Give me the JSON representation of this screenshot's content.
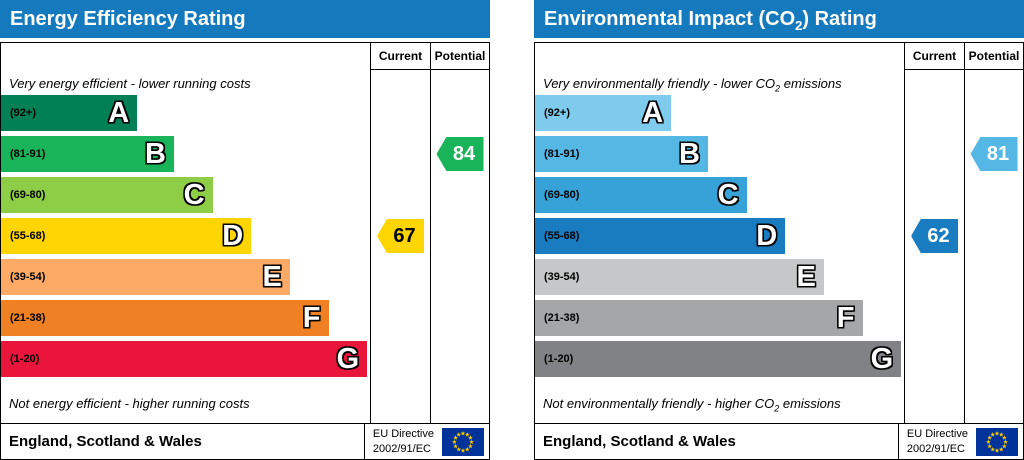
{
  "chart_data": [
    {
      "type": "bar",
      "title_pre": "Energy Efficiency Rating",
      "title_sub": "",
      "title_post": "",
      "header_bg": "#1479bd",
      "col_current": "Current",
      "col_potential": "Potential",
      "note_top_pre": "Very energy efficient - lower running costs",
      "note_top_sub": "",
      "note_top_post": "",
      "note_bottom_pre": "Not energy efficient - higher running costs",
      "note_bottom_sub": "",
      "note_bottom_post": "",
      "bands": [
        {
          "letter": "A",
          "range": "(92+)",
          "min": 92,
          "max": 100,
          "color": "#008054",
          "width_pct": 37
        },
        {
          "letter": "B",
          "range": "(81-91)",
          "min": 81,
          "max": 91,
          "color": "#19b459",
          "width_pct": 47
        },
        {
          "letter": "C",
          "range": "(69-80)",
          "min": 69,
          "max": 80,
          "color": "#8dce46",
          "width_pct": 57.5
        },
        {
          "letter": "D",
          "range": "(55-68)",
          "min": 55,
          "max": 68,
          "color": "#ffd500",
          "width_pct": 68
        },
        {
          "letter": "E",
          "range": "(39-54)",
          "min": 39,
          "max": 54,
          "color": "#fcaa65",
          "width_pct": 78.5
        },
        {
          "letter": "F",
          "range": "(21-38)",
          "min": 21,
          "max": 38,
          "color": "#ef8023",
          "width_pct": 89
        },
        {
          "letter": "G",
          "range": "(1-20)",
          "min": 1,
          "max": 20,
          "color": "#e9153b",
          "width_pct": 99.5
        }
      ],
      "current": {
        "value": 67,
        "band": "D",
        "band_index": 3,
        "bg": "#ffd500",
        "fg": "#000000"
      },
      "potential": {
        "value": 84,
        "band": "B",
        "band_index": 1,
        "bg": "#19b459",
        "fg": "#ffffff"
      },
      "footer": {
        "region": "England, Scotland & Wales",
        "directive": [
          "EU Directive",
          "2002/91/EC"
        ],
        "flag_bg": "#003399",
        "flag_star": "#ffcc00"
      }
    },
    {
      "type": "bar",
      "title_pre": "Environmental Impact (CO",
      "title_sub": "2",
      "title_post": ") Rating",
      "header_bg": "#1479bd",
      "col_current": "Current",
      "col_potential": "Potential",
      "note_top_pre": "Very environmentally friendly - lower CO",
      "note_top_sub": "2",
      "note_top_post": " emissions",
      "note_bottom_pre": "Not environmentally friendly - higher CO",
      "note_bottom_sub": "2",
      "note_bottom_post": " emissions",
      "bands": [
        {
          "letter": "A",
          "range": "(92+)",
          "min": 92,
          "max": 100,
          "color": "#7ecbed",
          "width_pct": 37
        },
        {
          "letter": "B",
          "range": "(81-91)",
          "min": 81,
          "max": 91,
          "color": "#55b7e4",
          "width_pct": 47
        },
        {
          "letter": "C",
          "range": "(69-80)",
          "min": 69,
          "max": 80,
          "color": "#37a2d8",
          "width_pct": 57.5
        },
        {
          "letter": "D",
          "range": "(55-68)",
          "min": 55,
          "max": 68,
          "color": "#1a7cc0",
          "width_pct": 68
        },
        {
          "letter": "E",
          "range": "(39-54)",
          "min": 39,
          "max": 54,
          "color": "#c6c7c8",
          "width_pct": 78.5
        },
        {
          "letter": "F",
          "range": "(21-38)",
          "min": 21,
          "max": 38,
          "color": "#a5a6a8",
          "width_pct": 89
        },
        {
          "letter": "G",
          "range": "(1-20)",
          "min": 1,
          "max": 20,
          "color": "#808285",
          "width_pct": 99.5
        }
      ],
      "current": {
        "value": 62,
        "band": "D",
        "band_index": 3,
        "bg": "#1a7cc0",
        "fg": "#ffffff"
      },
      "potential": {
        "value": 81,
        "band": "B",
        "band_index": 1,
        "bg": "#55b7e4",
        "fg": "#ffffff"
      },
      "footer": {
        "region": "England, Scotland & Wales",
        "directive": [
          "EU Directive",
          "2002/91/EC"
        ],
        "flag_bg": "#003399",
        "flag_star": "#ffcc00"
      }
    }
  ]
}
